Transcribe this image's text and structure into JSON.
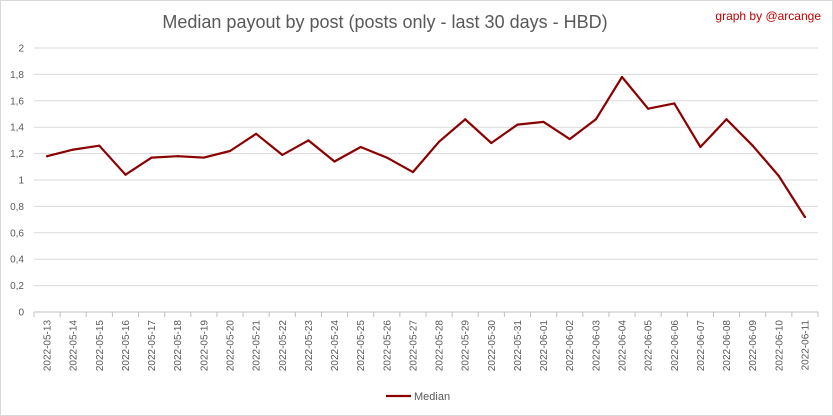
{
  "credit": "graph by @arcange",
  "chart_data": {
    "type": "line",
    "title": "Median payout by post (posts only - last 30 days - HBD)",
    "xlabel": "",
    "ylabel": "",
    "ylim": [
      0,
      2
    ],
    "yticks": [
      "0",
      "0,2",
      "0,4",
      "0,6",
      "0,8",
      "1",
      "1,2",
      "1,4",
      "1,6",
      "1,8",
      "2"
    ],
    "grid": "horizontal",
    "legend_position": "bottom",
    "categories": [
      "2022-05-13",
      "2022-05-14",
      "2022-05-15",
      "2022-05-16",
      "2022-05-17",
      "2022-05-18",
      "2022-05-19",
      "2022-05-20",
      "2022-05-21",
      "2022-05-22",
      "2022-05-23",
      "2022-05-24",
      "2022-05-25",
      "2022-05-26",
      "2022-05-27",
      "2022-05-28",
      "2022-05-29",
      "2022-05-30",
      "2022-05-31",
      "2022-06-01",
      "2022-06-02",
      "2022-06-03",
      "2022-06-04",
      "2022-06-05",
      "2022-06-06",
      "2022-06-07",
      "2022-06-08",
      "2022-06-09",
      "2022-06-10",
      "2022-06-11"
    ],
    "series": [
      {
        "name": "Median",
        "color": "#8b0000",
        "values": [
          1.18,
          1.23,
          1.26,
          1.04,
          1.17,
          1.18,
          1.17,
          1.22,
          1.35,
          1.19,
          1.3,
          1.14,
          1.25,
          1.17,
          1.06,
          1.29,
          1.46,
          1.28,
          1.42,
          1.44,
          1.31,
          1.46,
          1.78,
          1.54,
          1.58,
          1.25,
          1.46,
          1.26,
          1.03,
          0.72
        ]
      }
    ]
  }
}
